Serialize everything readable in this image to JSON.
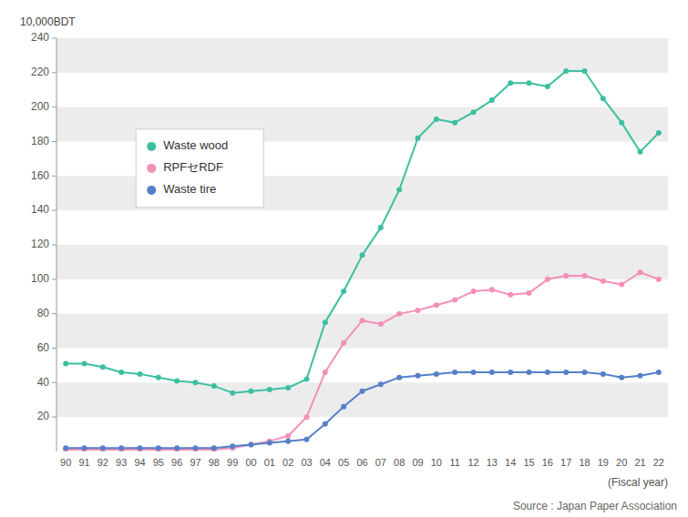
{
  "chart_data": {
    "type": "line",
    "categories": [
      "90",
      "91",
      "92",
      "93",
      "94",
      "95",
      "96",
      "97",
      "98",
      "99",
      "00",
      "01",
      "02",
      "03",
      "04",
      "05",
      "06",
      "07",
      "08",
      "09",
      "10",
      "11",
      "12",
      "13",
      "14",
      "15",
      "16",
      "17",
      "18",
      "19",
      "20",
      "21",
      "22"
    ],
    "series": [
      {
        "name": "Waste wood",
        "color": "#3dbfa0",
        "marker": "circle",
        "values": [
          51,
          51,
          49,
          46,
          45,
          43,
          41,
          40,
          38,
          34,
          35,
          36,
          37,
          42,
          75,
          93,
          114,
          130,
          152,
          182,
          193,
          191,
          197,
          204,
          214,
          214,
          212,
          221,
          221,
          205,
          191,
          174,
          185
        ]
      },
      {
        "name": "RPFセRDF",
        "color": "#f48fb8",
        "marker": "circle",
        "values": [
          1,
          1,
          1,
          1,
          1,
          1,
          1,
          1,
          1,
          2,
          4,
          6,
          9,
          20,
          46,
          63,
          76,
          74,
          80,
          82,
          85,
          88,
          93,
          94,
          91,
          92,
          100,
          102,
          102,
          99,
          97,
          104,
          100
        ]
      },
      {
        "name": "Waste tire",
        "color": "#5580c8",
        "marker": "circle",
        "values": [
          2,
          2,
          2,
          2,
          2,
          2,
          2,
          2,
          2,
          3,
          4,
          5,
          6,
          7,
          16,
          26,
          35,
          39,
          43,
          44,
          45,
          46,
          46,
          46,
          46,
          46,
          46,
          46,
          46,
          45,
          43,
          44,
          46
        ]
      }
    ],
    "ylim": [
      0,
      240
    ],
    "yticks": [
      20,
      40,
      60,
      80,
      100,
      120,
      140,
      160,
      180,
      200,
      220,
      240
    ],
    "ylabel": "10,000BDT",
    "xlabel": "(Fiscal year)",
    "source": "Source : Japan Paper Association",
    "legend": "upper left",
    "grid": false
  }
}
